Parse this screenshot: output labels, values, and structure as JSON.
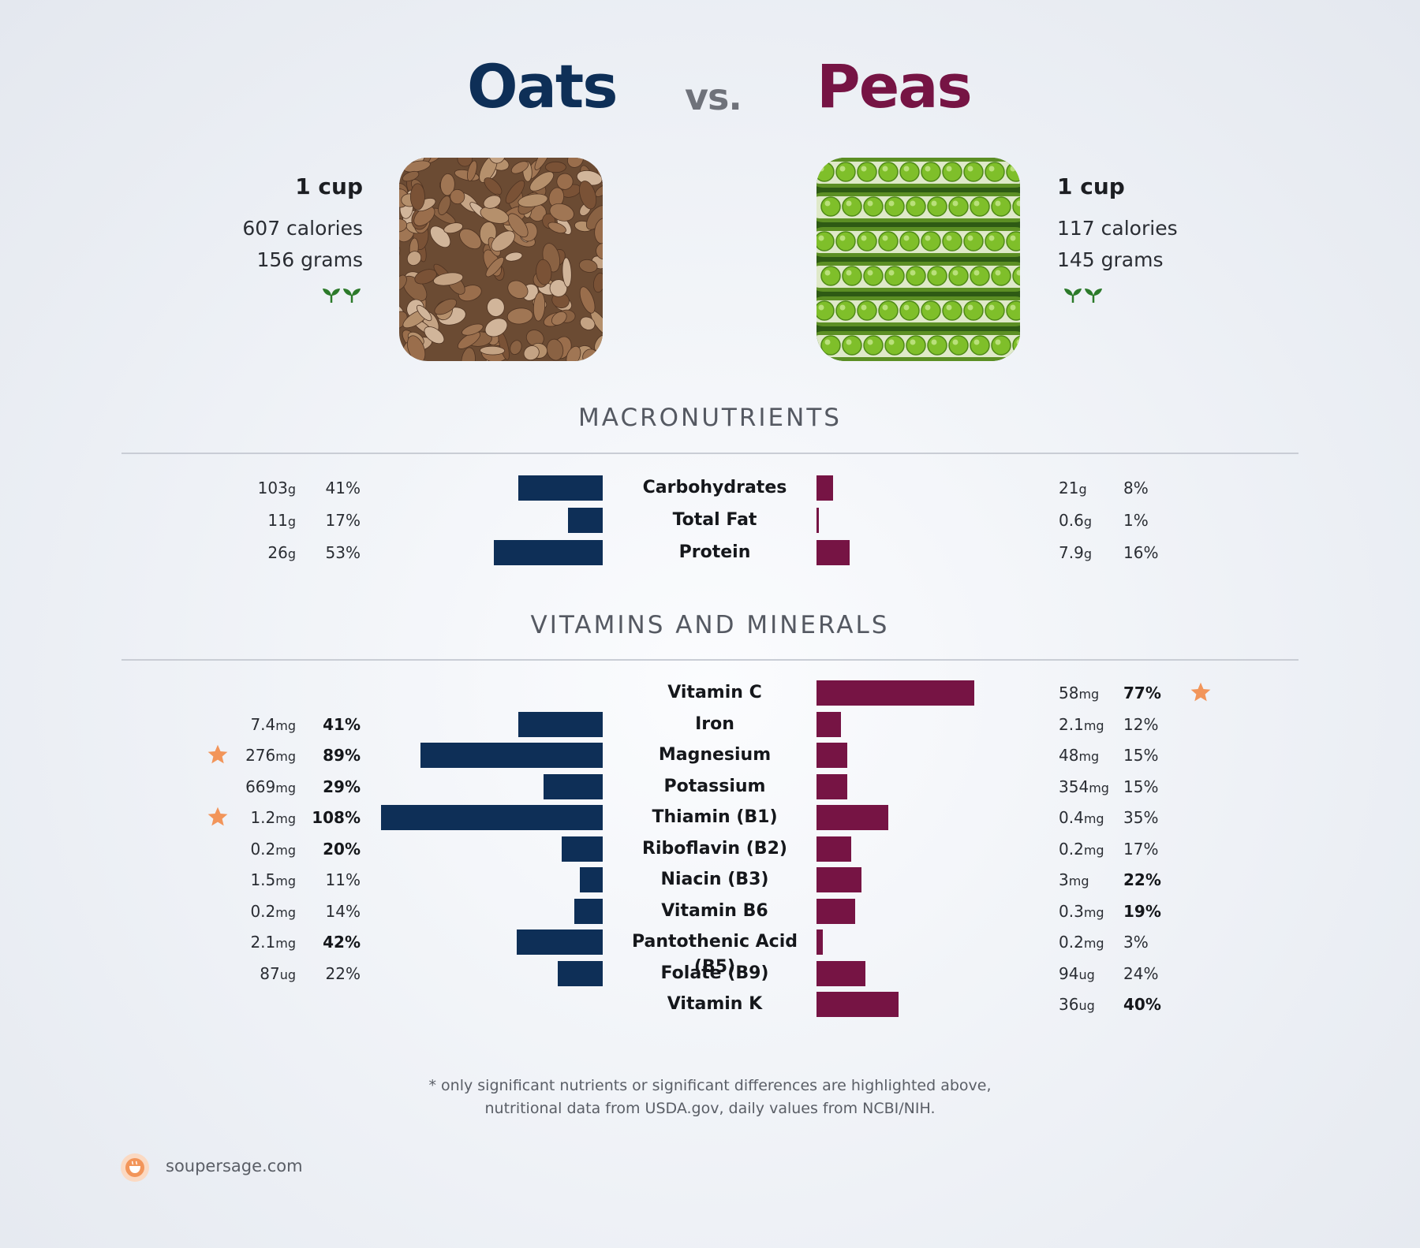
{
  "header": {
    "left_food": "Oats",
    "vs": "vs.",
    "right_food": "Peas"
  },
  "foods": {
    "left": {
      "serving": "1 cup",
      "calories": "607 calories",
      "grams": "156 grams",
      "image_icon": "rolled-oats-photo",
      "diet_icon": "vegan-sprout-icon"
    },
    "right": {
      "serving": "1 cup",
      "calories": "117 calories",
      "grams": "145 grams",
      "image_icon": "green-peas-pod-photo",
      "diet_icon": "vegan-sprout-icon"
    }
  },
  "sections": {
    "macros": "MACRONUTRIENTS",
    "vitamins": "VITAMINS AND MINERALS"
  },
  "colors": {
    "left": "#0e2f57",
    "right": "#761444",
    "star": "#f2955a"
  },
  "chart_data": [
    {
      "type": "bar",
      "title": "MACRONUTRIENTS",
      "categories": [
        "Carbohydrates",
        "Total Fat",
        "Protein"
      ],
      "series": [
        {
          "name": "Oats",
          "amounts": [
            "103",
            "11",
            "26"
          ],
          "units": [
            "g",
            "g",
            "g"
          ],
          "values": [
            41,
            17,
            53
          ],
          "bold": [
            false,
            false,
            false
          ],
          "star": [
            false,
            false,
            false
          ]
        },
        {
          "name": "Peas",
          "amounts": [
            "21",
            "0.6",
            "7.9"
          ],
          "units": [
            "g",
            "g",
            "g"
          ],
          "values": [
            8,
            1,
            16
          ],
          "bold": [
            false,
            false,
            false
          ],
          "star": [
            false,
            false,
            false
          ]
        }
      ]
    },
    {
      "type": "bar",
      "title": "VITAMINS AND MINERALS",
      "categories": [
        "Vitamin C",
        "Iron",
        "Magnesium",
        "Potassium",
        "Thiamin (B1)",
        "Riboflavin (B2)",
        "Niacin (B3)",
        "Vitamin B6",
        "Pantothenic Acid (B5)",
        "Folate (B9)",
        "Vitamin K"
      ],
      "series": [
        {
          "name": "Oats",
          "amounts": [
            null,
            "7.4",
            "276",
            "669",
            "1.2",
            "0.2",
            "1.5",
            "0.2",
            "2.1",
            "87",
            null
          ],
          "units": [
            null,
            "mg",
            "mg",
            "mg",
            "mg",
            "mg",
            "mg",
            "mg",
            "mg",
            "ug",
            null
          ],
          "values": [
            null,
            41,
            89,
            29,
            108,
            20,
            11,
            14,
            42,
            22,
            null
          ],
          "bold": [
            false,
            true,
            true,
            true,
            true,
            true,
            false,
            false,
            true,
            false,
            false
          ],
          "star": [
            false,
            false,
            true,
            false,
            true,
            false,
            false,
            false,
            false,
            false,
            false
          ]
        },
        {
          "name": "Peas",
          "amounts": [
            "58",
            "2.1",
            "48",
            "354",
            "0.4",
            "0.2",
            "3",
            "0.3",
            "0.2",
            "94",
            "36"
          ],
          "units": [
            "mg",
            "mg",
            "mg",
            "mg",
            "mg",
            "mg",
            "mg",
            "mg",
            "mg",
            "ug",
            "ug"
          ],
          "values": [
            77,
            12,
            15,
            15,
            35,
            17,
            22,
            19,
            3,
            24,
            40
          ],
          "bold": [
            true,
            false,
            false,
            false,
            false,
            false,
            true,
            true,
            false,
            false,
            true
          ],
          "star": [
            true,
            false,
            false,
            false,
            false,
            false,
            false,
            false,
            false,
            false,
            false
          ]
        }
      ]
    }
  ],
  "footnote": {
    "line1": "* only significant nutrients or significant differences are highlighted above,",
    "line2": "nutritional data from USDA.gov, daily values from NCBI/NIH."
  },
  "brand": {
    "name": "soupersage.com",
    "icon": "soupersage-logo-icon"
  }
}
